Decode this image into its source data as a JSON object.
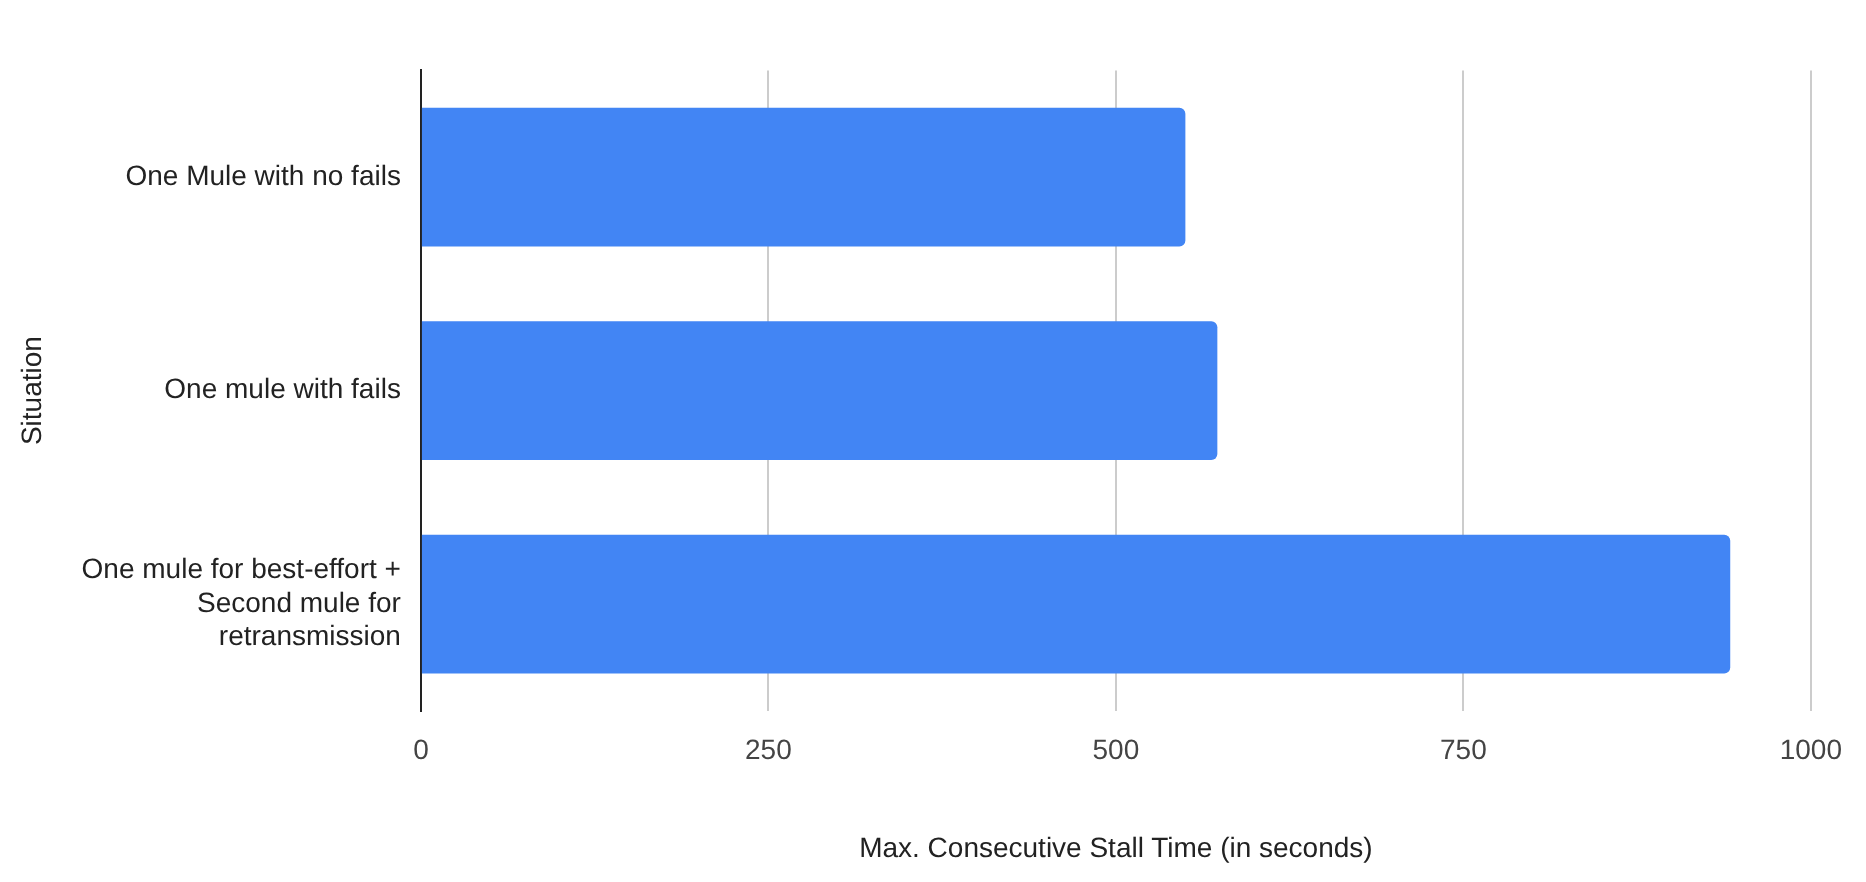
{
  "chart_data": {
    "type": "bar",
    "orientation": "horizontal",
    "xlabel": "Max. Consecutive Stall Time (in seconds)",
    "ylabel": "Situation",
    "categories": [
      "One Mule with no fails",
      "One mule with fails",
      "One mule for best-effort + Second mule for retransmission"
    ],
    "values": [
      550,
      573,
      942
    ],
    "color": "#4285f4",
    "xlim": [
      0,
      1000
    ],
    "xticks": [
      0,
      250,
      500,
      750,
      1000
    ],
    "grid": "x"
  }
}
